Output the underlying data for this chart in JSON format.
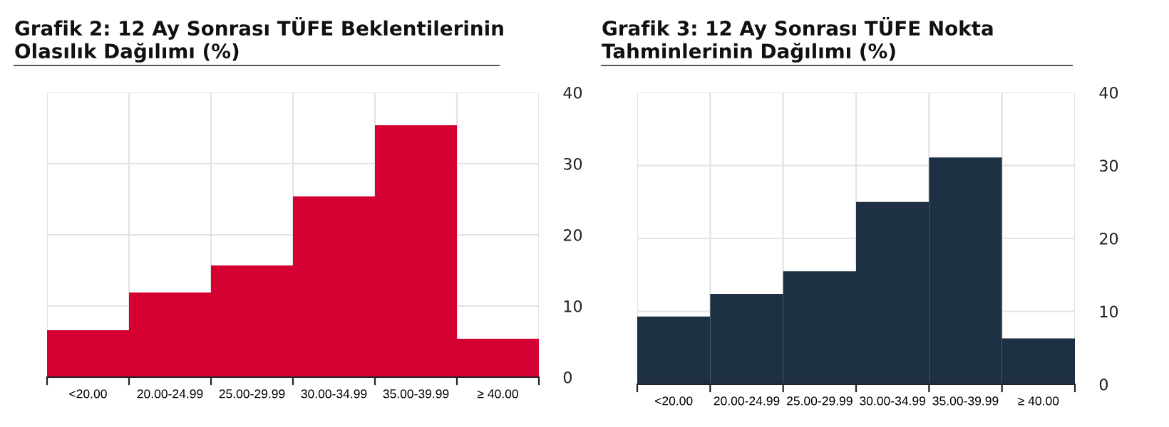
{
  "chart_data": [
    {
      "type": "bar",
      "title": "Grafik 2: 12 Ay Sonrası TÜFE Beklentilerinin\nOlasılık Dağılımı (%)",
      "categories": [
        "<20.00",
        "20.00-24.99",
        "25.00-29.99",
        "30.00-34.99",
        "35.00-39.99",
        "≥ 40.00"
      ],
      "values": [
        6.6,
        11.9,
        15.7,
        25.4,
        35.4,
        5.4
      ],
      "color": "#d50032",
      "ylim": [
        0,
        40
      ],
      "yticks": [
        0,
        10,
        20,
        30,
        40
      ],
      "grid": true
    },
    {
      "type": "bar",
      "title": "Grafik 3: 12 Ay Sonrası TÜFE Nokta\nTahminlerinin Dağılımı (%)",
      "categories": [
        "<20.00",
        "20.00-24.99",
        "25.00-29.99",
        "30.00-34.99",
        "35.00-39.99",
        "≥ 40.00"
      ],
      "values": [
        9.3,
        12.4,
        15.5,
        25.0,
        31.1,
        6.3
      ],
      "color": "#1d3044",
      "ylim": [
        0,
        40
      ],
      "yticks": [
        0,
        10,
        20,
        30,
        40
      ],
      "grid": true
    }
  ]
}
